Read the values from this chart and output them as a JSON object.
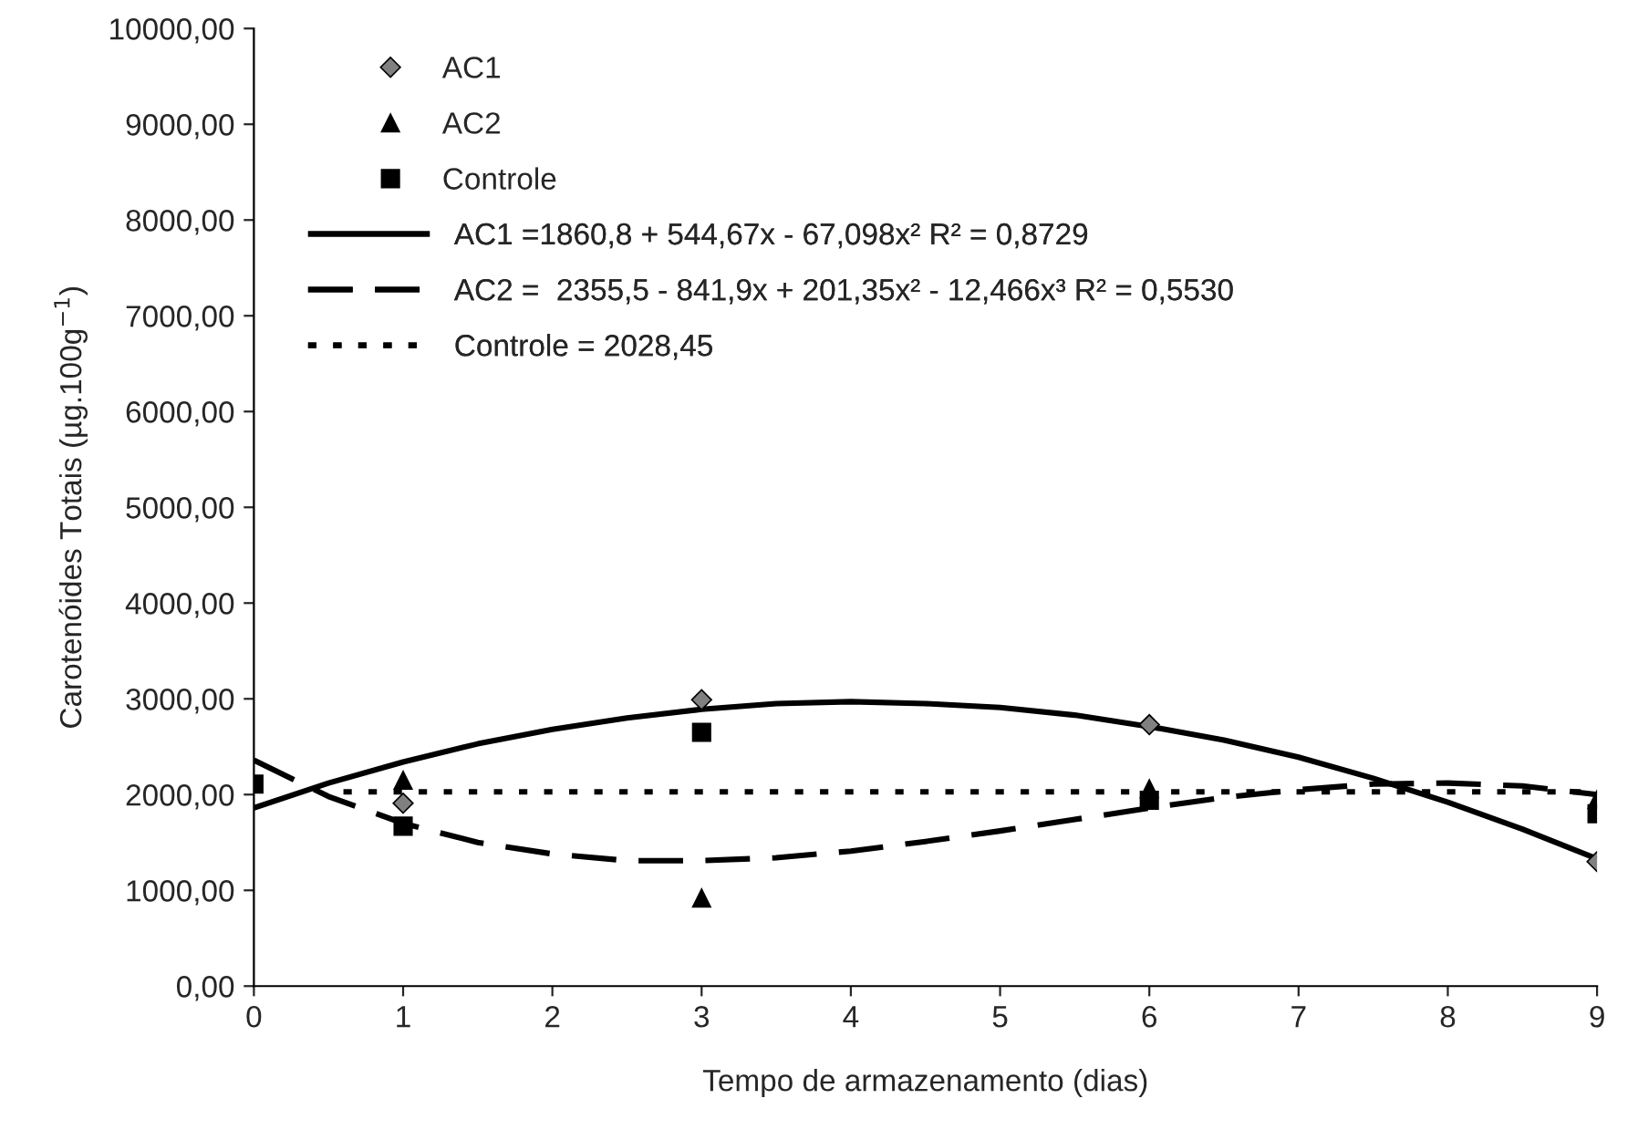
{
  "chart_data": {
    "type": "scatter",
    "xlabel": "Tempo de armazenamento (dias)",
    "ylabel": "Carotenóides Totais (µg.100g$^{−1}$)",
    "xlim": [
      0,
      9
    ],
    "xticks": [
      0,
      1,
      2,
      3,
      4,
      5,
      6,
      7,
      8,
      9
    ],
    "ylim": [
      0,
      10000
    ],
    "yticks": [
      {
        "value": 0,
        "label": "0,00"
      },
      {
        "value": 1000,
        "label": "1000,00"
      },
      {
        "value": 2000,
        "label": "2000,00"
      },
      {
        "value": 3000,
        "label": "3000,00"
      },
      {
        "value": 4000,
        "label": "4000,00"
      },
      {
        "value": 5000,
        "label": "5000,00"
      },
      {
        "value": 6000,
        "label": "6000,00"
      },
      {
        "value": 7000,
        "label": "7000,00"
      },
      {
        "value": 8000,
        "label": "8000,00"
      },
      {
        "value": 9000,
        "label": "9000,00"
      },
      {
        "value": 10000,
        "label": "10000,00"
      }
    ],
    "grid": false,
    "legend": "top left",
    "series": [
      {
        "name": "AC1",
        "marker": "diamond",
        "color": "#808080",
        "x": [
          1,
          3,
          6,
          9
        ],
        "values": [
          1910,
          2990,
          2730,
          1300
        ]
      },
      {
        "name": "AC2",
        "marker": "triangle",
        "color": "#000000",
        "x": [
          1,
          3,
          6,
          9
        ],
        "values": [
          2150,
          920,
          2060,
          1950
        ]
      },
      {
        "name": "Controle",
        "marker": "square",
        "color": "#000000",
        "x": [
          0,
          1,
          3,
          6,
          9
        ],
        "values": [
          2110,
          1670,
          2650,
          1940,
          1800
        ]
      },
      {
        "name": "AC1 =1860,8 + 544,67x - 67,098x² R² = 0,8729",
        "type": "line",
        "line_style": "solid",
        "color": "#000000",
        "x": [
          0,
          0.5,
          1,
          1.5,
          2,
          2.5,
          3,
          3.5,
          4,
          4.5,
          5,
          5.5,
          6,
          6.5,
          7,
          7.5,
          8,
          8.5,
          9
        ],
        "values": [
          1860,
          2120,
          2340,
          2530,
          2680,
          2800,
          2890,
          2950,
          2970,
          2950,
          2910,
          2830,
          2710,
          2570,
          2390,
          2170,
          1920,
          1640,
          1330
        ]
      },
      {
        "name": "AC2 =  2355,5 - 841,9x + 201,35x² - 12,466x³ R² = 0,5530",
        "type": "line",
        "line_style": "dashed",
        "color": "#000000",
        "x": [
          0,
          0.5,
          1,
          1.5,
          2,
          2.5,
          3,
          3.5,
          4,
          4.5,
          5,
          5.5,
          6,
          6.5,
          7,
          7.5,
          8,
          8.5,
          9
        ],
        "values": [
          2360,
          1980,
          1700,
          1500,
          1380,
          1310,
          1310,
          1340,
          1410,
          1510,
          1620,
          1740,
          1860,
          1970,
          2050,
          2110,
          2120,
          2090,
          2000
        ]
      },
      {
        "name": "Controle = 2028,45",
        "type": "line",
        "line_style": "dotted",
        "color": "#000000",
        "x": [
          0.6,
          9
        ],
        "values": [
          2028.45,
          2028.45
        ]
      }
    ]
  }
}
